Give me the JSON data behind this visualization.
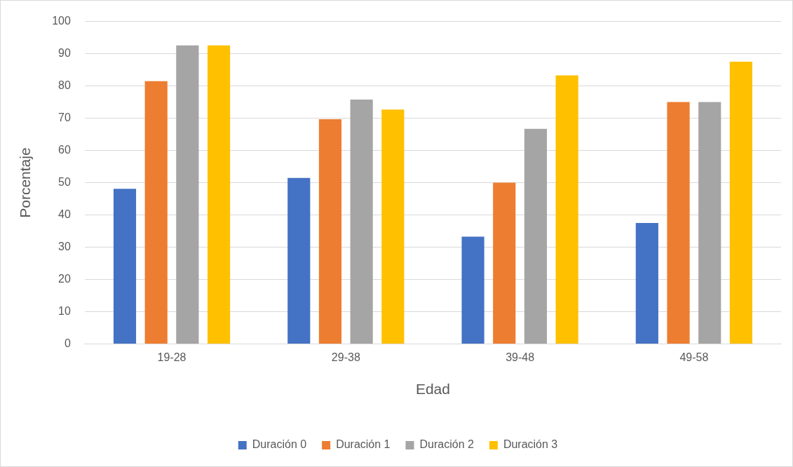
{
  "chart_data": {
    "type": "bar",
    "xlabel": "Edad",
    "ylabel": "Porcentaje",
    "categories": [
      "19-28",
      "29-38",
      "39-48",
      "49-58"
    ],
    "series": [
      {
        "name": "Duración 0",
        "color": "#4472c4",
        "values": [
          48.1,
          51.5,
          33.3,
          37.5
        ]
      },
      {
        "name": "Duración 1",
        "color": "#ed7d31",
        "values": [
          81.5,
          69.7,
          50,
          75
        ]
      },
      {
        "name": "Duración 2",
        "color": "#a5a5a5",
        "values": [
          92.6,
          75.8,
          66.7,
          75
        ]
      },
      {
        "name": "Duración 3",
        "color": "#ffc000",
        "values": [
          92.6,
          72.7,
          83.3,
          87.5
        ]
      }
    ],
    "ylim": [
      0,
      100
    ],
    "yticks": [
      0,
      10,
      20,
      30,
      40,
      50,
      60,
      70,
      80,
      90,
      100
    ],
    "grid": "y",
    "legend": "bottom"
  }
}
